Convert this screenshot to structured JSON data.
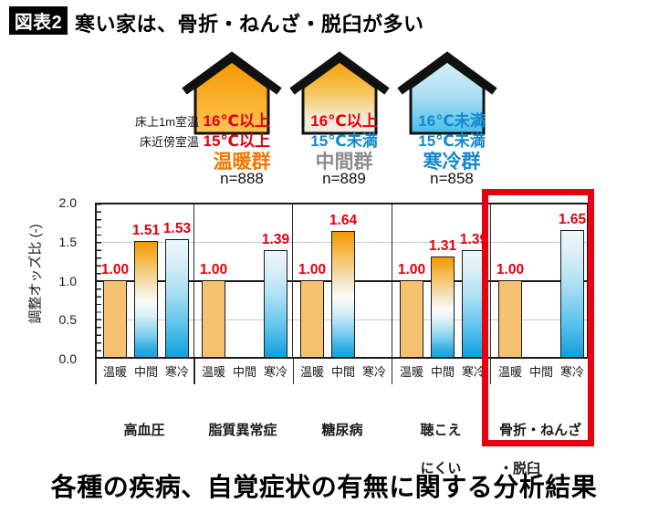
{
  "header": {
    "badge": "図表2",
    "title": "寒い家は、骨折・ねんざ・脱臼が多い"
  },
  "legend": {
    "row1_prefix": "床上1m室温",
    "row2_prefix": "床近傍室温",
    "groups": [
      {
        "house": "warm-house",
        "temp_upper": "16℃以上",
        "temp_floor": "15℃以上",
        "name": "温暖群",
        "n": "n=888"
      },
      {
        "house": "middle-house",
        "temp_upper": "16℃以上",
        "temp_floor": "15℃未満",
        "name": "中間群",
        "n": "n=889"
      },
      {
        "house": "cold-house",
        "temp_upper": "16℃未満",
        "temp_floor": "15℃未満",
        "name": "寒冷群",
        "n": "n=858"
      }
    ]
  },
  "chart_data": {
    "type": "bar",
    "ylabel": "調整オッズ比 (-)",
    "ylim": [
      0,
      2
    ],
    "yticks": [
      "2.0",
      "1.5",
      "1.0",
      "0.5",
      "0.0"
    ],
    "series_labels": [
      "温暖",
      "中間",
      "寒冷"
    ],
    "grid": "horizontal lines at 0.5 and 1.5 (light), 1.0 (dark); vertical separators between categories",
    "categories": [
      "高血圧",
      "脂質異常症",
      "糖尿病",
      "聴こえにくい",
      "骨折・ねんざ・脱臼"
    ],
    "groups": [
      {
        "category_line1": "高血圧",
        "category_line2": "",
        "bars": [
          {
            "series": "温暖",
            "value": 1.0,
            "label": "1.00"
          },
          {
            "series": "中間",
            "value": 1.51,
            "label": "1.51"
          },
          {
            "series": "寒冷",
            "value": 1.53,
            "label": "1.53"
          }
        ]
      },
      {
        "category_line1": "脂質異常症",
        "category_line2": "",
        "bars": [
          {
            "series": "温暖",
            "value": 1.0,
            "label": "1.00"
          },
          {
            "series": "中間",
            "value": null,
            "label": ""
          },
          {
            "series": "寒冷",
            "value": 1.39,
            "label": "1.39"
          }
        ]
      },
      {
        "category_line1": "糖尿病",
        "category_line2": "",
        "bars": [
          {
            "series": "温暖",
            "value": 1.0,
            "label": "1.00"
          },
          {
            "series": "中間",
            "value": 1.64,
            "label": "1.64"
          },
          {
            "series": "寒冷",
            "value": null,
            "label": ""
          }
        ]
      },
      {
        "category_line1": "聴こえ",
        "category_line2": "にくい",
        "bars": [
          {
            "series": "温暖",
            "value": 1.0,
            "label": "1.00"
          },
          {
            "series": "中間",
            "value": 1.31,
            "label": "1.31"
          },
          {
            "series": "寒冷",
            "value": 1.39,
            "label": "1.39"
          }
        ]
      },
      {
        "category_line1": "骨折・ねんざ",
        "category_line2": "・脱臼",
        "bars": [
          {
            "series": "温暖",
            "value": 1.0,
            "label": "1.00"
          },
          {
            "series": "中間",
            "value": null,
            "label": ""
          },
          {
            "series": "寒冷",
            "value": 1.65,
            "label": "1.65"
          }
        ]
      }
    ],
    "highlighted_category": "骨折・ねんざ・脱臼"
  },
  "footer": {
    "caption": "各種の疾病、自覚症状の有無に関する分析結果"
  },
  "colors": {
    "value_label_red": "#E3000F",
    "blue_text": "#1388CC",
    "orange_text": "#F07800",
    "gray_text": "#8C8C8C",
    "warm_bar": "#F6C170",
    "cold_bar_bottom": "#17A2DE",
    "mid_bar_top": "#F39800",
    "highlight_box": "#E8000D"
  }
}
